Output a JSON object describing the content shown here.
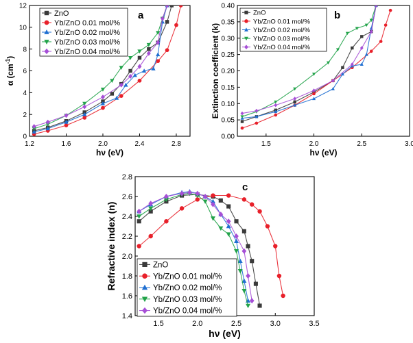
{
  "series_meta": [
    {
      "name": "ZnO",
      "color": "#3a3a3a",
      "marker": "square"
    },
    {
      "name": "Yb/ZnO 0.01 mol/%",
      "color": "#e8202a",
      "marker": "circle"
    },
    {
      "name": "Yb/ZnO 0.02 mol/%",
      "color": "#1f6fd1",
      "marker": "triangle-up"
    },
    {
      "name": "Yb/ZnO 0.03 mol/%",
      "color": "#22a34a",
      "marker": "triangle-down"
    },
    {
      "name": "Yb/ZnO 0.04 mol/%",
      "color": "#a64fd6",
      "marker": "diamond"
    }
  ],
  "chart_data": [
    {
      "type": "scatter",
      "panel_label": "a",
      "title": "",
      "xlabel": "hν (eV)",
      "ylabel_main": "α (cm",
      "ylabel_sup": "-1",
      "ylabel_close": ")",
      "xlim": [
        1.2,
        2.95
      ],
      "ylim": [
        0,
        12
      ],
      "xticks": [
        1.2,
        1.6,
        2.0,
        2.4,
        2.8
      ],
      "xtick_labels": [
        "1.2",
        "1.6",
        "2.0",
        "2.4",
        "2.8"
      ],
      "yticks": [
        0,
        2,
        4,
        6,
        8,
        10,
        12
      ],
      "ytick_labels": [
        "0",
        "2",
        "4",
        "6",
        "8",
        "10",
        "12"
      ],
      "legend_position": "top-left",
      "legend": [
        "ZnO",
        "Yb/ZnO 0.01 mol/%",
        "Yb/ZnO 0.02 mol/%",
        "Yb/ZnO 0.03 mol/%",
        "Yb/ZnO 0.04 mol/%"
      ],
      "series": [
        {
          "name": "ZnO",
          "x": [
            1.25,
            1.4,
            1.6,
            1.8,
            2.0,
            2.1,
            2.2,
            2.3,
            2.4,
            2.5,
            2.6,
            2.7,
            2.75
          ],
          "y": [
            0.5,
            0.8,
            1.4,
            2.2,
            3.2,
            3.9,
            4.8,
            6.0,
            7.2,
            8.0,
            8.6,
            10.5,
            12.0
          ]
        },
        {
          "name": "Yb/ZnO 0.01 mol/%",
          "x": [
            1.25,
            1.4,
            1.6,
            1.8,
            2.0,
            2.2,
            2.4,
            2.6,
            2.7,
            2.8,
            2.85
          ],
          "y": [
            0.2,
            0.5,
            1.0,
            1.7,
            2.6,
            3.7,
            5.1,
            6.9,
            7.9,
            10.2,
            12.0
          ]
        },
        {
          "name": "Yb/ZnO 0.02 mol/%",
          "x": [
            1.25,
            1.4,
            1.6,
            1.8,
            2.0,
            2.15,
            2.25,
            2.35,
            2.45,
            2.55,
            2.6,
            2.65,
            2.7
          ],
          "y": [
            0.4,
            0.7,
            1.3,
            2.0,
            3.0,
            3.5,
            4.7,
            5.6,
            6.0,
            6.2,
            7.5,
            10.5,
            12.0
          ]
        },
        {
          "name": "Yb/ZnO 0.03 mol/%",
          "x": [
            1.25,
            1.4,
            1.6,
            1.8,
            2.0,
            2.1,
            2.2,
            2.3,
            2.4,
            2.5,
            2.6,
            2.65,
            2.7
          ],
          "y": [
            0.7,
            1.1,
            1.9,
            3.0,
            4.3,
            5.1,
            6.3,
            7.2,
            7.8,
            8.4,
            9.5,
            10.8,
            12.0
          ]
        },
        {
          "name": "Yb/ZnO 0.04 mol/%",
          "x": [
            1.25,
            1.4,
            1.6,
            1.8,
            2.0,
            2.2,
            2.3,
            2.4,
            2.5,
            2.6,
            2.65,
            2.7
          ],
          "y": [
            0.9,
            1.3,
            1.9,
            2.7,
            3.6,
            4.7,
            5.5,
            6.4,
            7.6,
            8.6,
            10.8,
            12.0
          ]
        }
      ]
    },
    {
      "type": "scatter",
      "panel_label": "b",
      "title": "",
      "xlabel": "hν (eV)",
      "ylabel": "Extinction coefficient (k)",
      "xlim": [
        1.2,
        3.0
      ],
      "ylim": [
        0,
        0.4
      ],
      "xticks": [
        1.5,
        2.0,
        2.5,
        3.0
      ],
      "xtick_labels": [
        "1.5",
        "2.0",
        "2.5",
        "3.0"
      ],
      "yticks": [
        0,
        0.05,
        0.1,
        0.15,
        0.2,
        0.25,
        0.3,
        0.35,
        0.4
      ],
      "ytick_labels": [
        "0.00",
        "0.05",
        "0.10",
        "0.15",
        "0.20",
        "0.25",
        "0.30",
        "0.35",
        "0.40"
      ],
      "legend_position": "top-left",
      "legend": [
        "ZnO",
        "Yb/ZnO 0.01 mol/%",
        "Yb/ZnO 0.02 mol/%",
        "Yb/ZnO 0.03 mol/%",
        "Yb/ZnO 0.04 mol/%"
      ],
      "series": [
        {
          "name": "ZnO",
          "x": [
            1.25,
            1.4,
            1.6,
            1.8,
            2.0,
            2.2,
            2.3,
            2.4,
            2.5,
            2.6,
            2.65
          ],
          "y": [
            0.045,
            0.06,
            0.08,
            0.105,
            0.135,
            0.17,
            0.21,
            0.27,
            0.305,
            0.32,
            0.4
          ]
        },
        {
          "name": "Yb/ZnO 0.01 mol/%",
          "x": [
            1.25,
            1.4,
            1.6,
            1.8,
            2.0,
            2.2,
            2.4,
            2.6,
            2.7,
            2.75,
            2.8
          ],
          "y": [
            0.025,
            0.04,
            0.065,
            0.095,
            0.13,
            0.17,
            0.21,
            0.26,
            0.29,
            0.34,
            0.385
          ]
        },
        {
          "name": "Yb/ZnO 0.02 mol/%",
          "x": [
            1.25,
            1.4,
            1.6,
            1.8,
            2.0,
            2.2,
            2.3,
            2.4,
            2.5,
            2.55,
            2.6,
            2.65
          ],
          "y": [
            0.055,
            0.06,
            0.075,
            0.095,
            0.115,
            0.145,
            0.19,
            0.215,
            0.22,
            0.25,
            0.33,
            0.4
          ]
        },
        {
          "name": "Yb/ZnO 0.03 mol/%",
          "x": [
            1.25,
            1.4,
            1.6,
            1.8,
            2.0,
            2.15,
            2.25,
            2.35,
            2.45,
            2.55,
            2.6,
            2.65
          ],
          "y": [
            0.06,
            0.075,
            0.105,
            0.145,
            0.19,
            0.225,
            0.265,
            0.315,
            0.33,
            0.34,
            0.355,
            0.4
          ]
        },
        {
          "name": "Yb/ZnO 0.04 mol/%",
          "x": [
            1.25,
            1.4,
            1.6,
            1.8,
            2.0,
            2.2,
            2.4,
            2.5,
            2.6,
            2.65
          ],
          "y": [
            0.07,
            0.078,
            0.095,
            0.115,
            0.14,
            0.17,
            0.22,
            0.27,
            0.32,
            0.4
          ]
        }
      ]
    },
    {
      "type": "scatter",
      "panel_label": "c",
      "title": "",
      "xlabel": "hν (eV)",
      "ylabel": "Refractive index (n)",
      "xlim": [
        1.2,
        3.5
      ],
      "ylim": [
        1.4,
        2.8
      ],
      "xticks": [
        1.5,
        2.0,
        2.5,
        3.0,
        3.5
      ],
      "xtick_labels": [
        "1.5",
        "2.0",
        "2.5",
        "3.0",
        "3.5"
      ],
      "yticks": [
        1.4,
        1.6,
        1.8,
        2.0,
        2.2,
        2.4,
        2.6,
        2.8
      ],
      "ytick_labels": [
        "1.4",
        "1.6",
        "1.8",
        "2.0",
        "2.2",
        "2.4",
        "2.6",
        "2.8"
      ],
      "legend_position": "bottom-left",
      "legend": [
        "ZnO",
        "Yb/ZnO 0.01 mol/%",
        "Yb/ZnO 0.02 mol/%",
        "Yb/ZnO 0.03 mol/%",
        "Yb/ZnO 0.04 mol/%"
      ],
      "series": [
        {
          "name": "ZnO",
          "x": [
            1.25,
            1.4,
            1.6,
            1.8,
            2.0,
            2.2,
            2.3,
            2.4,
            2.5,
            2.6,
            2.65,
            2.7,
            2.75,
            2.8
          ],
          "y": [
            2.35,
            2.45,
            2.55,
            2.61,
            2.62,
            2.6,
            2.56,
            2.5,
            2.35,
            2.25,
            2.1,
            1.95,
            1.72,
            1.5
          ]
        },
        {
          "name": "Yb/ZnO 0.01 mol/%",
          "x": [
            1.25,
            1.4,
            1.6,
            1.8,
            2.0,
            2.2,
            2.4,
            2.6,
            2.7,
            2.8,
            2.9,
            3.0,
            3.05,
            3.1
          ],
          "y": [
            2.1,
            2.2,
            2.35,
            2.48,
            2.57,
            2.61,
            2.61,
            2.57,
            2.52,
            2.45,
            2.3,
            2.1,
            1.8,
            1.6
          ]
        },
        {
          "name": "Yb/ZnO 0.02 mol/%",
          "x": [
            1.25,
            1.4,
            1.6,
            1.8,
            1.9,
            2.0,
            2.1,
            2.2,
            2.3,
            2.4,
            2.5,
            2.55,
            2.6,
            2.65
          ],
          "y": [
            2.45,
            2.52,
            2.6,
            2.64,
            2.65,
            2.63,
            2.6,
            2.55,
            2.42,
            2.3,
            2.15,
            1.95,
            1.75,
            1.55
          ]
        },
        {
          "name": "Yb/ZnO 0.03 mol/%",
          "x": [
            1.25,
            1.4,
            1.6,
            1.8,
            1.9,
            2.0,
            2.1,
            2.2,
            2.3,
            2.4,
            2.5,
            2.55,
            2.6,
            2.65
          ],
          "y": [
            2.4,
            2.48,
            2.57,
            2.62,
            2.63,
            2.61,
            2.55,
            2.38,
            2.28,
            2.22,
            2.05,
            1.85,
            1.65,
            1.5
          ]
        },
        {
          "name": "Yb/ZnO 0.04 mol/%",
          "x": [
            1.25,
            1.4,
            1.6,
            1.8,
            1.9,
            2.0,
            2.1,
            2.2,
            2.3,
            2.4,
            2.5,
            2.6,
            2.65,
            2.7
          ],
          "y": [
            2.45,
            2.53,
            2.6,
            2.63,
            2.64,
            2.63,
            2.6,
            2.52,
            2.42,
            2.35,
            2.2,
            2.05,
            1.8,
            1.55
          ]
        }
      ]
    }
  ]
}
